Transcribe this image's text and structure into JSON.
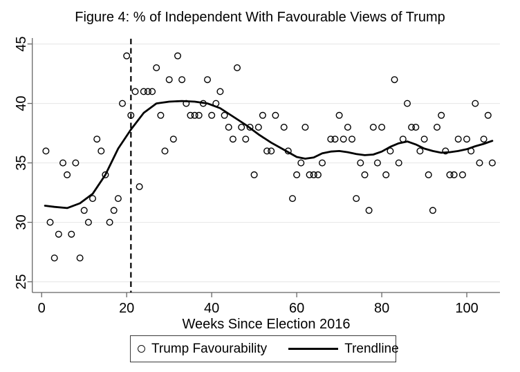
{
  "chart_data": {
    "type": "scatter",
    "title": "Figure 4: % of Independent With Favourable Views of Trump",
    "xlabel": "Weeks Since Election 2016",
    "ylabel": "",
    "xlim": [
      -2.2,
      107.8
    ],
    "ylim": [
      24.1,
      45.5
    ],
    "x_ticks": [
      0,
      20,
      40,
      60,
      80,
      100
    ],
    "y_ticks": [
      25,
      30,
      35,
      40,
      45
    ],
    "grid": "horizontal-only",
    "legend_position": "bottom-center",
    "reference_line_x": 21,
    "series": [
      {
        "name": "Trump Favourability",
        "type": "scatter",
        "marker": "open-circle",
        "color": "#000000",
        "points": [
          [
            1,
            36
          ],
          [
            2,
            30
          ],
          [
            3,
            27
          ],
          [
            4,
            29
          ],
          [
            5,
            35
          ],
          [
            6,
            34
          ],
          [
            7,
            29
          ],
          [
            8,
            35
          ],
          [
            9,
            27
          ],
          [
            10,
            31
          ],
          [
            11,
            30
          ],
          [
            12,
            32
          ],
          [
            13,
            37
          ],
          [
            14,
            36
          ],
          [
            15,
            34
          ],
          [
            16,
            30
          ],
          [
            17,
            31
          ],
          [
            18,
            32
          ],
          [
            19,
            40
          ],
          [
            20,
            44
          ],
          [
            21,
            39
          ],
          [
            22,
            41
          ],
          [
            23,
            33
          ],
          [
            24,
            41
          ],
          [
            25,
            41
          ],
          [
            26,
            41
          ],
          [
            27,
            43
          ],
          [
            28,
            39
          ],
          [
            29,
            36
          ],
          [
            30,
            42
          ],
          [
            31,
            37
          ],
          [
            32,
            44
          ],
          [
            33,
            42
          ],
          [
            34,
            40
          ],
          [
            35,
            39
          ],
          [
            36,
            39
          ],
          [
            37,
            39
          ],
          [
            38,
            40
          ],
          [
            39,
            42
          ],
          [
            40,
            39
          ],
          [
            41,
            40
          ],
          [
            42,
            41
          ],
          [
            43,
            39
          ],
          [
            44,
            38
          ],
          [
            45,
            37
          ],
          [
            46,
            43
          ],
          [
            47,
            38
          ],
          [
            48,
            37
          ],
          [
            49,
            38
          ],
          [
            50,
            34
          ],
          [
            51,
            38
          ],
          [
            52,
            39
          ],
          [
            53,
            36
          ],
          [
            54,
            36
          ],
          [
            55,
            39
          ],
          [
            57,
            38
          ],
          [
            58,
            36
          ],
          [
            59,
            32
          ],
          [
            60,
            34
          ],
          [
            61,
            35
          ],
          [
            62,
            38
          ],
          [
            63,
            34
          ],
          [
            64,
            34
          ],
          [
            65,
            34
          ],
          [
            66,
            35
          ],
          [
            68,
            37
          ],
          [
            69,
            37
          ],
          [
            70,
            39
          ],
          [
            71,
            37
          ],
          [
            72,
            38
          ],
          [
            73,
            37
          ],
          [
            74,
            32
          ],
          [
            75,
            35
          ],
          [
            76,
            34
          ],
          [
            77,
            31
          ],
          [
            78,
            38
          ],
          [
            79,
            35
          ],
          [
            80,
            38
          ],
          [
            81,
            34
          ],
          [
            82,
            36
          ],
          [
            83,
            42
          ],
          [
            84,
            35
          ],
          [
            85,
            37
          ],
          [
            86,
            40
          ],
          [
            87,
            38
          ],
          [
            88,
            38
          ],
          [
            89,
            36
          ],
          [
            90,
            37
          ],
          [
            91,
            34
          ],
          [
            92,
            31
          ],
          [
            93,
            38
          ],
          [
            94,
            39
          ],
          [
            95,
            36
          ],
          [
            96,
            34
          ],
          [
            97,
            34
          ],
          [
            98,
            37
          ],
          [
            99,
            34
          ],
          [
            100,
            37
          ],
          [
            101,
            36
          ],
          [
            102,
            40
          ],
          [
            103,
            35
          ],
          [
            104,
            37
          ],
          [
            105,
            39
          ],
          [
            106,
            35
          ]
        ]
      },
      {
        "name": "Trendline",
        "type": "line",
        "color": "#000000",
        "points": [
          [
            0.8,
            31.4
          ],
          [
            3,
            31.3
          ],
          [
            6,
            31.2
          ],
          [
            9,
            31.6
          ],
          [
            12,
            32.4
          ],
          [
            15,
            34
          ],
          [
            18,
            36.2
          ],
          [
            21,
            37.8
          ],
          [
            24,
            39.2
          ],
          [
            27,
            40
          ],
          [
            30,
            40.15
          ],
          [
            33,
            40.2
          ],
          [
            36,
            40.15
          ],
          [
            39,
            40
          ],
          [
            42,
            39.6
          ],
          [
            45,
            38.9
          ],
          [
            48,
            38.2
          ],
          [
            51,
            37.4
          ],
          [
            54,
            36.7
          ],
          [
            57,
            36.1
          ],
          [
            60,
            35.5
          ],
          [
            62,
            35.35
          ],
          [
            64,
            35.45
          ],
          [
            66,
            35.8
          ],
          [
            68,
            35.95
          ],
          [
            70,
            36
          ],
          [
            72,
            35.9
          ],
          [
            74,
            35.75
          ],
          [
            76,
            35.65
          ],
          [
            78,
            35.7
          ],
          [
            80,
            35.95
          ],
          [
            82,
            36.35
          ],
          [
            84,
            36.65
          ],
          [
            86,
            36.8
          ],
          [
            88,
            36.55
          ],
          [
            90,
            36.2
          ],
          [
            92,
            36
          ],
          [
            94,
            35.85
          ],
          [
            96,
            35.9
          ],
          [
            98,
            36
          ],
          [
            100,
            36.15
          ],
          [
            102,
            36.4
          ],
          [
            104,
            36.6
          ],
          [
            106,
            36.85
          ]
        ]
      }
    ]
  },
  "legend": {
    "items": [
      {
        "label": "Trump Favourability",
        "marker": "open-circle"
      },
      {
        "label": "Trendline",
        "marker": "line"
      }
    ]
  },
  "colors": {
    "background": "#ffffff",
    "gridline": "#e9e9e9",
    "axis": "#666666",
    "text": "#000000",
    "reference_line": "#000000"
  }
}
